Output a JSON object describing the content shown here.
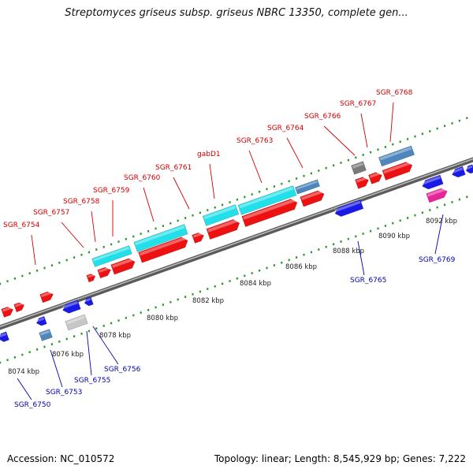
{
  "title": "Streptomyces griseus subsp. griseus NBRC 13350, complete gen...",
  "footer": {
    "accession": "Accession: NC_010572",
    "summary": "Topology: linear; Length: 8,545,929 bp; Genes: 7,222"
  },
  "colors": {
    "forward": "#ee1111",
    "reverse": "#1a1ae6",
    "cyan": "#22e0ea",
    "steel": "#4f86bd",
    "gray": "#7a7a7a",
    "light_gray": "#c6c6c6",
    "pink": "#e8249a",
    "tick_green": "#2a9a2a",
    "label_red": "#cc0000",
    "label_blue": "#0000aa"
  },
  "axis_labels": [
    "8074 kbp",
    "8076 kbp",
    "8078 kbp",
    "8080 kbp",
    "8082 kbp",
    "8084 kbp",
    "8086 kbp",
    "8088 kbp",
    "8090 kbp",
    "8092 kbp"
  ],
  "gene_labels_top": [
    "SGR_6754",
    "SGR_6757",
    "SGR_6758",
    "SGR_6759",
    "SGR_6760",
    "SGR_6761",
    "gabD1",
    "SGR_6763",
    "SGR_6764",
    "SGR_6766",
    "SGR_6767",
    "SGR_6768"
  ],
  "gene_labels_bottom": [
    "SGR_6750",
    "SGR_6753",
    "SGR_6755",
    "SGR_6756",
    "SGR_6765",
    "SGR_6769"
  ]
}
